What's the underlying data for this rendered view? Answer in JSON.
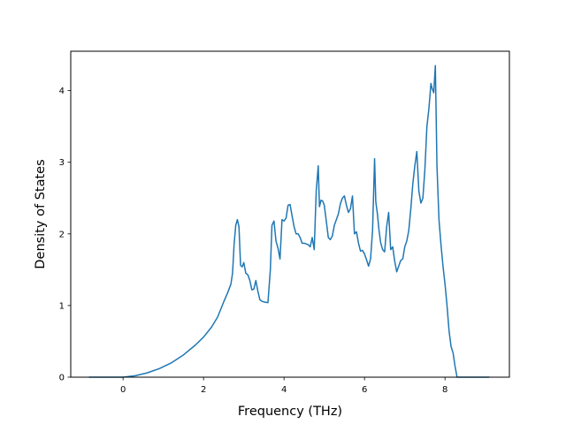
{
  "chart_data": {
    "type": "line",
    "title": "",
    "xlabel": "Frequency (THz)",
    "ylabel": "Density of States",
    "xlim": [
      -1.3,
      9.6
    ],
    "ylim": [
      0,
      4.55
    ],
    "xticks": [
      0,
      2,
      4,
      6,
      8
    ],
    "yticks": [
      0,
      1,
      2,
      3,
      4
    ],
    "grid": false,
    "legend": "none",
    "series": [
      {
        "color": "#1f77b4",
        "x": [
          -0.85,
          -0.5,
          0.0,
          0.3,
          0.6,
          0.9,
          1.2,
          1.5,
          1.8,
          2.0,
          2.2,
          2.35,
          2.5,
          2.6,
          2.68,
          2.72,
          2.76,
          2.8,
          2.84,
          2.88,
          2.92,
          2.96,
          3.0,
          3.05,
          3.1,
          3.15,
          3.2,
          3.25,
          3.3,
          3.35,
          3.4,
          3.45,
          3.5,
          3.6,
          3.66,
          3.7,
          3.75,
          3.8,
          3.85,
          3.9,
          3.95,
          4.0,
          4.05,
          4.1,
          4.15,
          4.2,
          4.25,
          4.3,
          4.35,
          4.4,
          4.45,
          4.5,
          4.6,
          4.65,
          4.7,
          4.75,
          4.8,
          4.85,
          4.88,
          4.92,
          4.96,
          5.0,
          5.05,
          5.1,
          5.15,
          5.2,
          5.25,
          5.3,
          5.35,
          5.4,
          5.45,
          5.5,
          5.55,
          5.6,
          5.65,
          5.7,
          5.75,
          5.8,
          5.85,
          5.9,
          5.95,
          6.0,
          6.05,
          6.1,
          6.15,
          6.2,
          6.25,
          6.28,
          6.32,
          6.36,
          6.4,
          6.45,
          6.5,
          6.55,
          6.6,
          6.65,
          6.7,
          6.75,
          6.8,
          6.85,
          6.9,
          6.95,
          7.0,
          7.05,
          7.1,
          7.15,
          7.2,
          7.25,
          7.3,
          7.35,
          7.4,
          7.45,
          7.5,
          7.55,
          7.6,
          7.65,
          7.68,
          7.72,
          7.76,
          7.8,
          7.85,
          7.9,
          7.95,
          8.0,
          8.05,
          8.1,
          8.15,
          8.2,
          8.25,
          8.3,
          8.4,
          8.6,
          9.1
        ],
        "y": [
          0.0,
          0.0,
          0.0,
          0.02,
          0.06,
          0.12,
          0.2,
          0.31,
          0.45,
          0.56,
          0.7,
          0.84,
          1.05,
          1.18,
          1.3,
          1.45,
          1.86,
          2.12,
          2.2,
          2.1,
          1.56,
          1.54,
          1.6,
          1.45,
          1.43,
          1.35,
          1.22,
          1.23,
          1.35,
          1.2,
          1.08,
          1.06,
          1.05,
          1.04,
          1.5,
          2.12,
          2.18,
          1.9,
          1.8,
          1.65,
          2.2,
          2.18,
          2.22,
          2.4,
          2.41,
          2.25,
          2.1,
          2.0,
          2.0,
          1.95,
          1.87,
          1.87,
          1.85,
          1.82,
          1.95,
          1.78,
          2.6,
          2.95,
          2.38,
          2.47,
          2.46,
          2.4,
          2.18,
          1.95,
          1.92,
          1.97,
          2.12,
          2.2,
          2.28,
          2.42,
          2.5,
          2.53,
          2.4,
          2.3,
          2.35,
          2.53,
          2.0,
          2.03,
          1.87,
          1.76,
          1.77,
          1.72,
          1.64,
          1.55,
          1.65,
          2.05,
          3.05,
          2.45,
          2.28,
          2.05,
          1.88,
          1.78,
          1.75,
          2.1,
          2.3,
          1.78,
          1.82,
          1.62,
          1.47,
          1.55,
          1.63,
          1.65,
          1.82,
          1.9,
          2.05,
          2.35,
          2.7,
          2.95,
          3.15,
          2.6,
          2.43,
          2.5,
          2.9,
          3.5,
          3.75,
          4.1,
          4.03,
          3.97,
          4.35,
          2.95,
          2.2,
          1.85,
          1.55,
          1.3,
          1.0,
          0.65,
          0.43,
          0.34,
          0.15,
          0.0,
          0.0,
          0.0,
          0.0
        ]
      }
    ]
  }
}
